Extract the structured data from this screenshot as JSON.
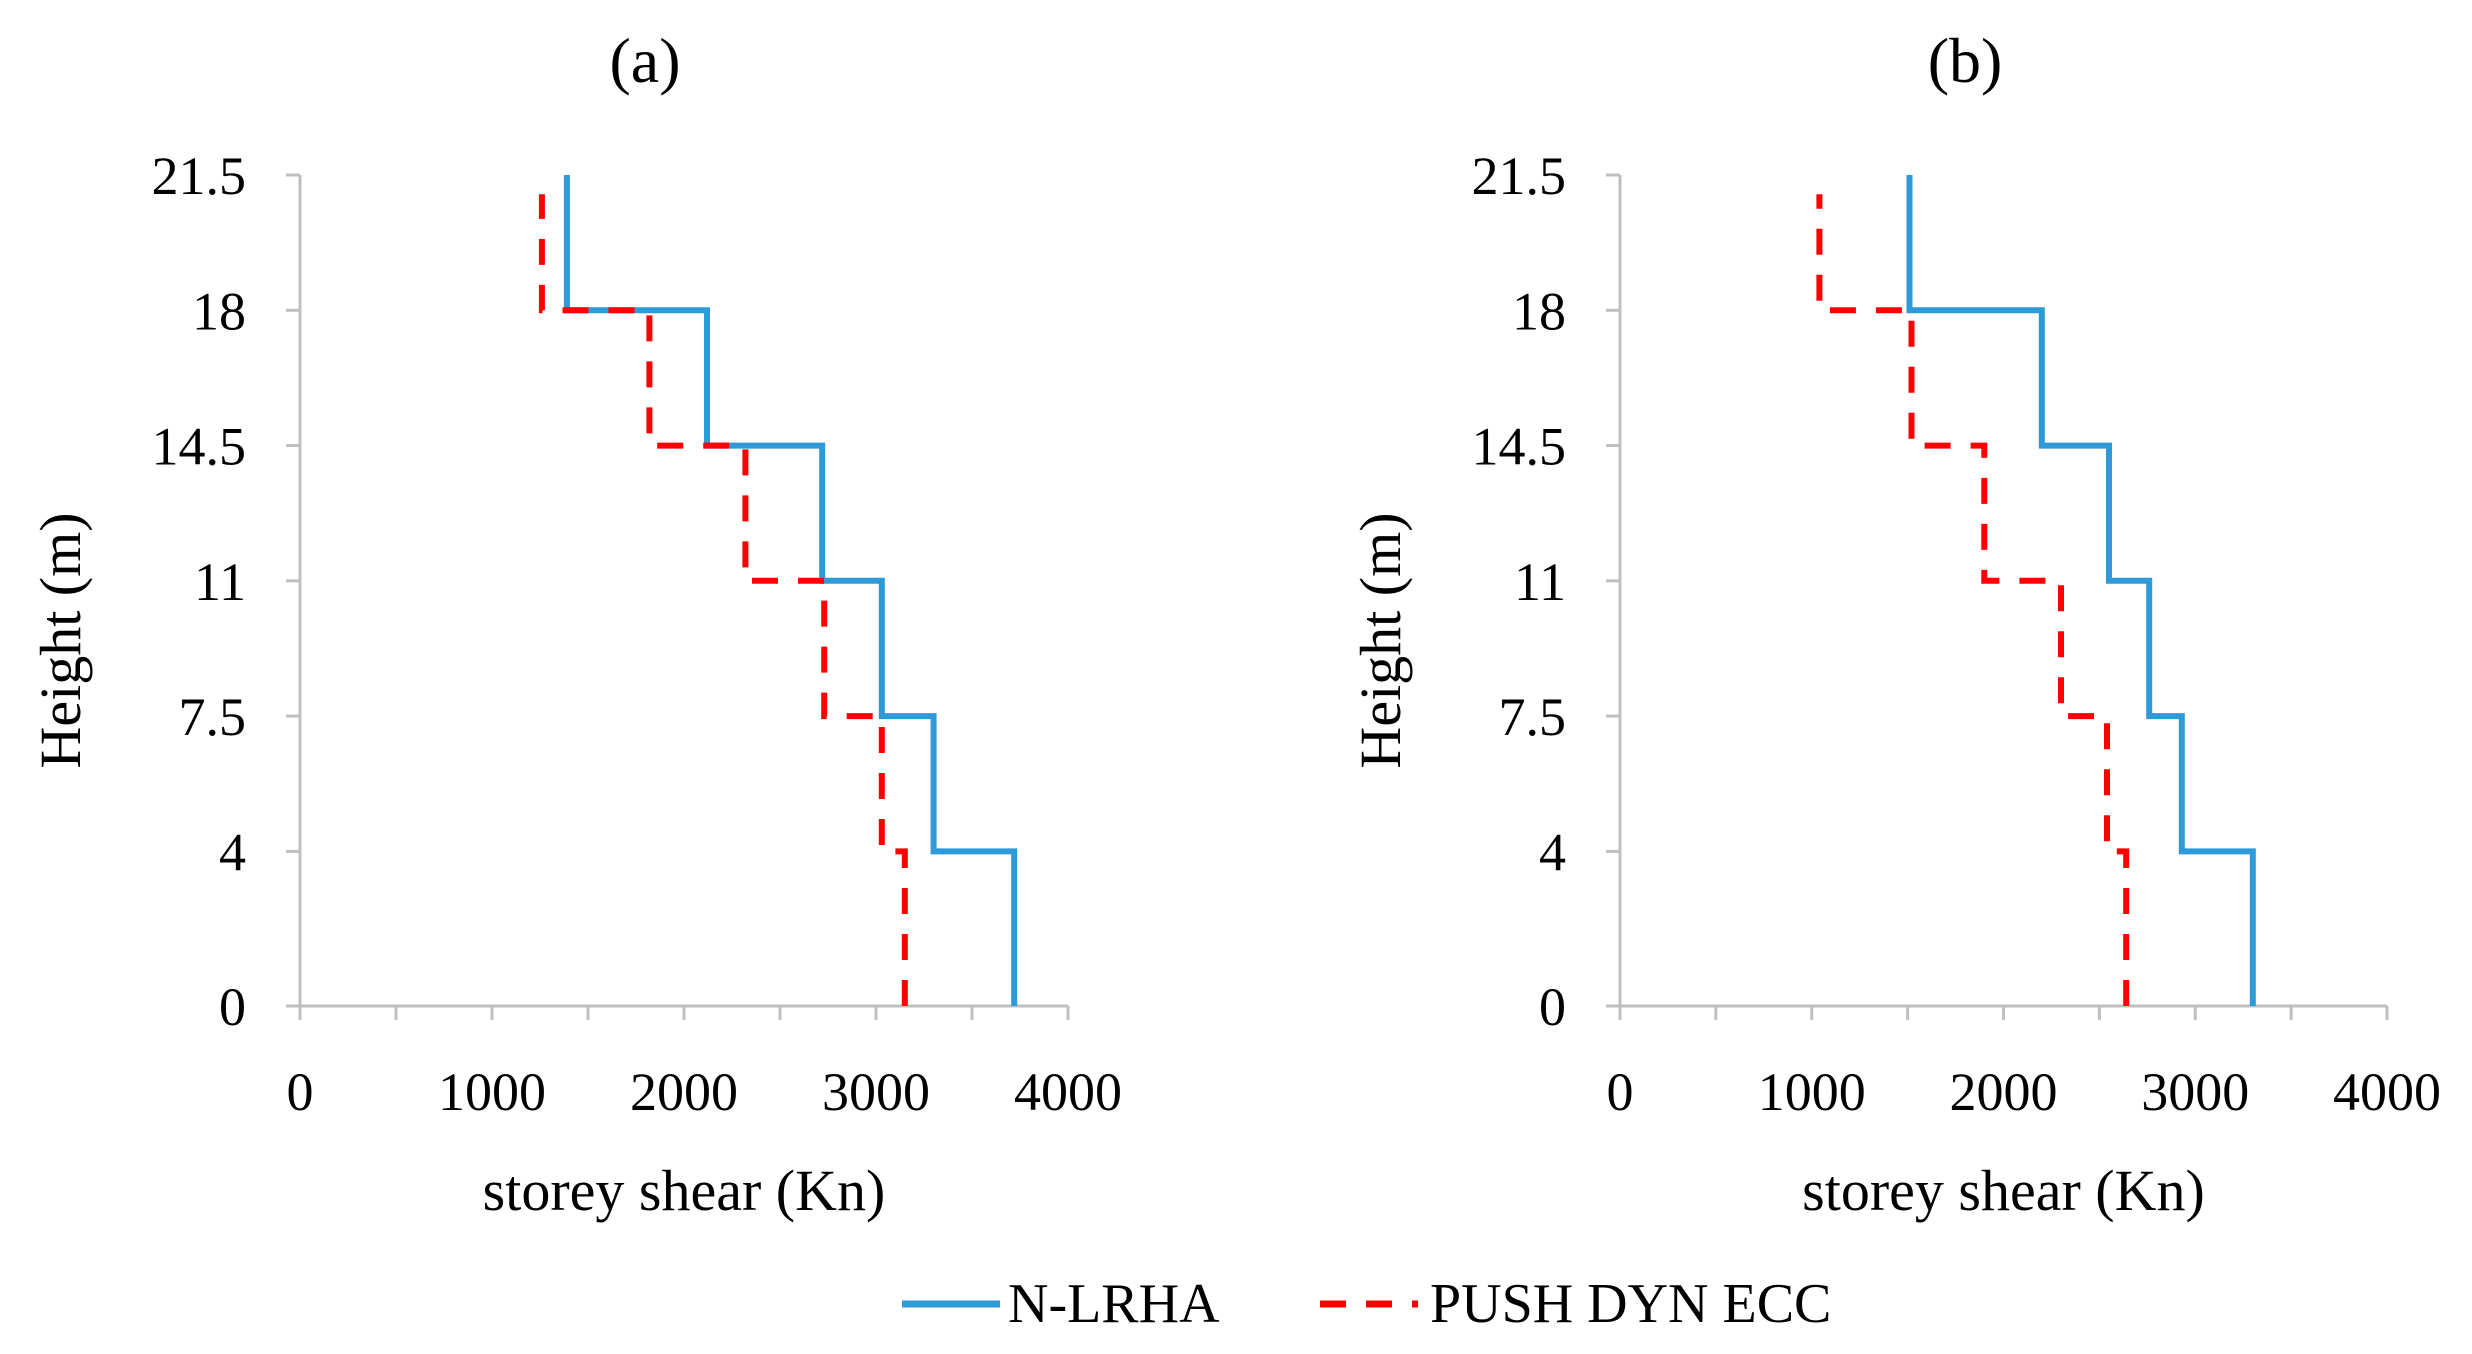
{
  "chart_data": [
    {
      "type": "line",
      "title": "(a)",
      "xlabel": "storey shear (Kn)",
      "ylabel": "Height (m)",
      "xlim": [
        0,
        4000
      ],
      "ylim": [
        0,
        21.5
      ],
      "xticks": [
        0,
        1000,
        2000,
        3000,
        4000
      ],
      "yticks": [
        0,
        4,
        7.5,
        11,
        14.5,
        18,
        21.5
      ],
      "xtick_labels": [
        "0",
        "1000",
        "2000",
        "3000",
        "4000"
      ],
      "ytick_labels": [
        "0",
        "4",
        "7.5",
        "11",
        "14.5",
        "18",
        "21.5"
      ],
      "grid": false,
      "series": [
        {
          "name": "N-LRHA",
          "style": "solid",
          "color": "#2E9AD8",
          "x": [
            3720,
            3720,
            3300,
            3300,
            3030,
            3030,
            2720,
            2720,
            2120,
            2120,
            1390,
            1390
          ],
          "y": [
            0,
            4,
            4,
            7.5,
            7.5,
            11,
            11,
            14.5,
            14.5,
            18,
            18,
            21.5
          ]
        },
        {
          "name": "PUSH DYN ECC",
          "style": "dashed",
          "color": "#FF0000",
          "x": [
            3150,
            3150,
            3030,
            3030,
            2730,
            2730,
            2320,
            2320,
            1820,
            1820,
            1260,
            1260
          ],
          "y": [
            0,
            4,
            4,
            7.5,
            7.5,
            11,
            11,
            14.5,
            14.5,
            18,
            18,
            21
          ]
        }
      ]
    },
    {
      "type": "line",
      "title": "(b)",
      "xlabel": "storey shear (Kn)",
      "ylabel": "Height (m)",
      "xlim": [
        0,
        4000
      ],
      "ylim": [
        0,
        21.5
      ],
      "xticks": [
        0,
        1000,
        2000,
        3000,
        4000
      ],
      "yticks": [
        0,
        4,
        7.5,
        11,
        14.5,
        18,
        21.5
      ],
      "xtick_labels": [
        "0",
        "1000",
        "2000",
        "3000",
        "4000"
      ],
      "ytick_labels": [
        "0",
        "4",
        "7.5",
        "11",
        "14.5",
        "18",
        "21.5"
      ],
      "grid": false,
      "series": [
        {
          "name": "N-LRHA",
          "style": "solid",
          "color": "#2E9AD8",
          "x": [
            3300,
            3300,
            2930,
            2930,
            2760,
            2760,
            2550,
            2550,
            2200,
            2200,
            1510,
            1510
          ],
          "y": [
            0,
            4,
            4,
            7.5,
            7.5,
            11,
            11,
            14.5,
            14.5,
            18,
            18,
            21.5
          ]
        },
        {
          "name": "PUSH DYN ECC",
          "style": "dashed",
          "color": "#FF0000",
          "x": [
            2640,
            2640,
            2540,
            2540,
            2300,
            2300,
            1900,
            1900,
            1520,
            1520,
            1040,
            1040
          ],
          "y": [
            0,
            4,
            4,
            7.5,
            7.5,
            11,
            11,
            14.5,
            14.5,
            18,
            18,
            21
          ]
        }
      ]
    }
  ],
  "legend": {
    "placement": "bottom-center",
    "items": [
      {
        "label": "N-LRHA",
        "style": "solid",
        "color": "#2E9AD8"
      },
      {
        "label": "PUSH DYN ECC",
        "style": "dashed",
        "color": "#FF0000"
      }
    ]
  }
}
